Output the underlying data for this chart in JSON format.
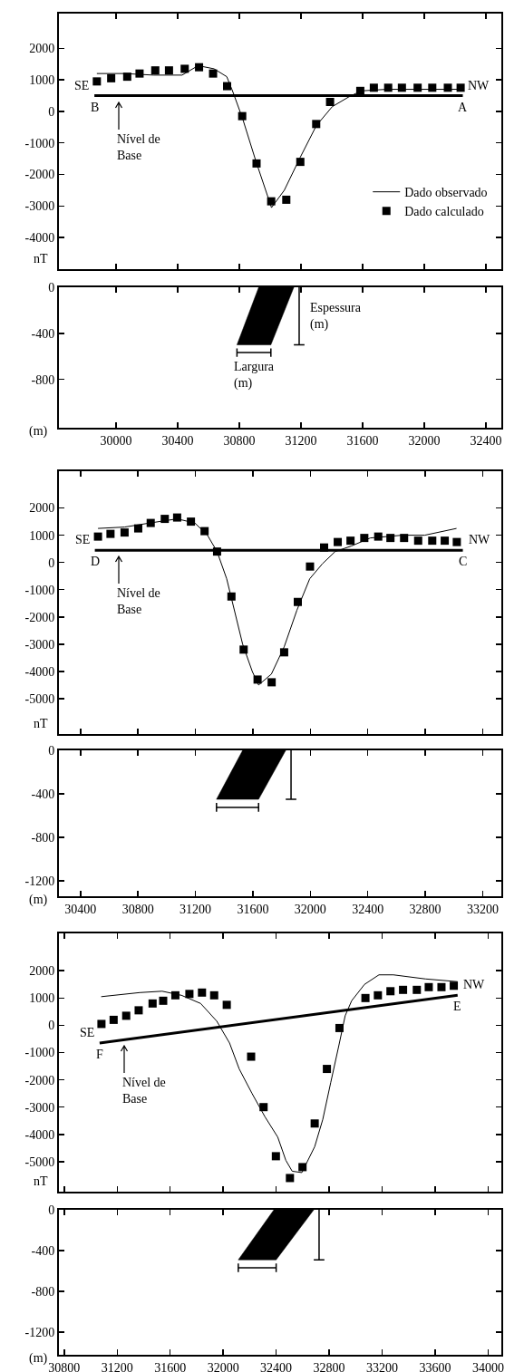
{
  "chart_data": [
    {
      "type": "line",
      "xlim": [
        29630,
        32500
      ],
      "xticks": [
        30000,
        30400,
        30800,
        31200,
        31600,
        32000,
        32400
      ],
      "ylim": [
        -5000,
        3100
      ],
      "yticks": [
        2000,
        1000,
        0,
        -1000,
        -2000,
        -3000,
        -4000
      ],
      "ylabel": "nT",
      "tick_labels": "y",
      "legend": "bottom right",
      "series": [
        {
          "name": "Dado observado",
          "type": "line",
          "marker": "none",
          "color": "#000000",
          "x": [
            29876,
            30056,
            30243,
            30429,
            30533,
            30636,
            30719,
            30760,
            30823,
            30906,
            31009,
            31092,
            31196,
            31300,
            31403,
            31507,
            31590,
            31756,
            32253
          ],
          "values": [
            1200,
            1200,
            1150,
            1150,
            1450,
            1350,
            1100,
            600,
            -250,
            -1550,
            -3050,
            -2500,
            -1450,
            -450,
            150,
            450,
            650,
            700,
            700
          ]
        },
        {
          "name": "Dado calculado",
          "type": "scatter",
          "marker": "square",
          "color": "#000000",
          "x": [
            29876,
            29969,
            30073,
            30153,
            30255,
            30344,
            30446,
            30539,
            30630,
            30721,
            30819,
            30912,
            31007,
            31105,
            31196,
            31299,
            31389,
            31585,
            31673,
            31766,
            31855,
            31957,
            32052,
            32153,
            32236
          ],
          "values": [
            950,
            1050,
            1100,
            1200,
            1300,
            1300,
            1350,
            1400,
            1200,
            800,
            -150,
            -1650,
            -2850,
            -2800,
            -1600,
            -400,
            300,
            650,
            750,
            750,
            750,
            750,
            750,
            750,
            750
          ]
        },
        {
          "type": "line",
          "marker": "none",
          "color": "#000000",
          "x": [
            29860,
            32250
          ],
          "values": [
            500,
            500
          ]
        }
      ],
      "annotations": [
        "SE",
        "B",
        "NW",
        "A",
        "Nível de\nBase"
      ]
    },
    {
      "type": "area",
      "xlim": [
        29630,
        32500
      ],
      "xticks": [
        30000,
        30400,
        30800,
        31200,
        31600,
        32000,
        32400
      ],
      "ylim": [
        -1220,
        0
      ],
      "yticks": [
        0,
        -400,
        -800
      ],
      "ylabel": "(m)",
      "series": [
        {
          "color": "#000000",
          "x": [
            30785,
            30926,
            31154,
            31005
          ],
          "values": [
            -500,
            0,
            0,
            -500
          ]
        }
      ],
      "annotations": [
        "Espessura\n(m)",
        "Largura\n(m)"
      ]
    },
    {
      "type": "line",
      "xlim": [
        30250,
        33330
      ],
      "xticks": [
        30400,
        30800,
        31200,
        31600,
        32000,
        32400,
        32800,
        33200
      ],
      "ylim": [
        -6300,
        3350
      ],
      "yticks": [
        2000,
        1000,
        0,
        -1000,
        -2000,
        -3000,
        -4000,
        -5000
      ],
      "ylabel": "nT",
      "tick_labels": "y",
      "series": [
        {
          "type": "line",
          "marker": "none",
          "color": "#000000",
          "x": [
            30522,
            30707,
            30884,
            31073,
            31196,
            31284,
            31351,
            31418,
            31529,
            31596,
            31640,
            31729,
            31818,
            31907,
            31996,
            32084,
            32173,
            32284,
            32418,
            32640,
            32796,
            33018
          ],
          "values": [
            1250,
            1300,
            1450,
            1600,
            1450,
            1000,
            400,
            -600,
            -3000,
            -4000,
            -4500,
            -4100,
            -3100,
            -1750,
            -600,
            -50,
            400,
            600,
            900,
            1000,
            1000,
            1250
          ]
        },
        {
          "type": "scatter",
          "marker": "square",
          "color": "#000000",
          "x": [
            30522,
            30609,
            30707,
            30802,
            30889,
            30987,
            31073,
            31169,
            31264,
            31351,
            31451,
            31536,
            31633,
            31731,
            31818,
            31913,
            31998,
            32096,
            32191,
            32280,
            32376,
            32473,
            32558,
            32653,
            32751,
            32849,
            32936,
            33020
          ],
          "values": [
            950,
            1050,
            1100,
            1250,
            1450,
            1600,
            1650,
            1500,
            1150,
            400,
            -1250,
            -3200,
            -4300,
            -4400,
            -3300,
            -1450,
            -150,
            550,
            750,
            800,
            900,
            950,
            900,
            900,
            800,
            800,
            800,
            750
          ]
        },
        {
          "type": "line",
          "marker": "none",
          "color": "#000000",
          "x": [
            30500,
            33062
          ],
          "values": [
            450,
            450
          ]
        }
      ],
      "annotations": [
        "SE",
        "D",
        "NW",
        "C",
        "Nível de\nBase"
      ]
    },
    {
      "type": "area",
      "xlim": [
        30250,
        33330
      ],
      "xticks": [
        30400,
        30800,
        31200,
        31600,
        32000,
        32400,
        32800,
        33200
      ],
      "ylim": [
        -1340,
        0
      ],
      "yticks": [
        0,
        -400,
        -800,
        -1200
      ],
      "ylabel": "(m)",
      "series": [
        {
          "color": "#000000",
          "x": [
            31347,
            31529,
            31829,
            31640
          ],
          "values": [
            -450,
            0,
            0,
            -450
          ]
        }
      ]
    },
    {
      "type": "line",
      "xlim": [
        30760,
        34100
      ],
      "xticks": [
        30800,
        31200,
        31600,
        32000,
        32400,
        32800,
        33200,
        33600,
        34000
      ],
      "ylim": [
        -6100,
        3370
      ],
      "yticks": [
        2000,
        1000,
        0,
        -1000,
        -2000,
        -3000,
        -4000,
        -5000
      ],
      "ylabel": "nT",
      "tick_labels": "y",
      "series": [
        {
          "type": "line",
          "marker": "none",
          "color": "#000000",
          "x": [
            31079,
            31370,
            31539,
            31685,
            31830,
            31952,
            32048,
            32121,
            32218,
            32315,
            32412,
            32473,
            32521,
            32594,
            32691,
            32752,
            32812,
            32873,
            32921,
            32970,
            33067,
            33176,
            33285,
            33527,
            33770
          ],
          "values": [
            1050,
            1200,
            1250,
            1100,
            800,
            150,
            -650,
            -1600,
            -2500,
            -3350,
            -4100,
            -4950,
            -5350,
            -5400,
            -4450,
            -3450,
            -2100,
            -750,
            350,
            900,
            1500,
            1850,
            1850,
            1700,
            1600
          ]
        },
        {
          "type": "scatter",
          "marker": "square",
          "color": "#000000",
          "x": [
            31081,
            31173,
            31268,
            31362,
            31467,
            31547,
            31639,
            31745,
            31840,
            31932,
            32027,
            32211,
            32305,
            32398,
            32504,
            32599,
            32691,
            32783,
            32878,
            33074,
            33168,
            33263,
            33358,
            33462,
            33552,
            33648,
            33741
          ],
          "values": [
            50,
            200,
            350,
            550,
            800,
            900,
            1100,
            1150,
            1200,
            1100,
            750,
            -1150,
            -3000,
            -4800,
            -5600,
            -5200,
            -3600,
            -1600,
            -100,
            1000,
            1100,
            1250,
            1300,
            1300,
            1400,
            1400,
            1450
          ]
        },
        {
          "type": "line",
          "marker": "none",
          "color": "#000000",
          "x": [
            31067,
            33770
          ],
          "values": [
            -650,
            1100
          ]
        }
      ],
      "annotations": [
        "SE",
        "F",
        "NW",
        "E",
        "Nível de\nBase"
      ]
    },
    {
      "type": "area",
      "xlim": [
        30760,
        34100
      ],
      "xticks": [
        30800,
        31200,
        31600,
        32000,
        32400,
        32800,
        33200,
        33600,
        34000
      ],
      "ylim": [
        -1420,
        0
      ],
      "yticks": [
        0,
        -400,
        -800,
        -1200
      ],
      "ylabel": "(m)",
      "series": [
        {
          "color": "#000000",
          "x": [
            32114,
            32383,
            32684,
            32400
          ],
          "values": [
            -490,
            0,
            0,
            -490
          ]
        }
      ]
    }
  ]
}
